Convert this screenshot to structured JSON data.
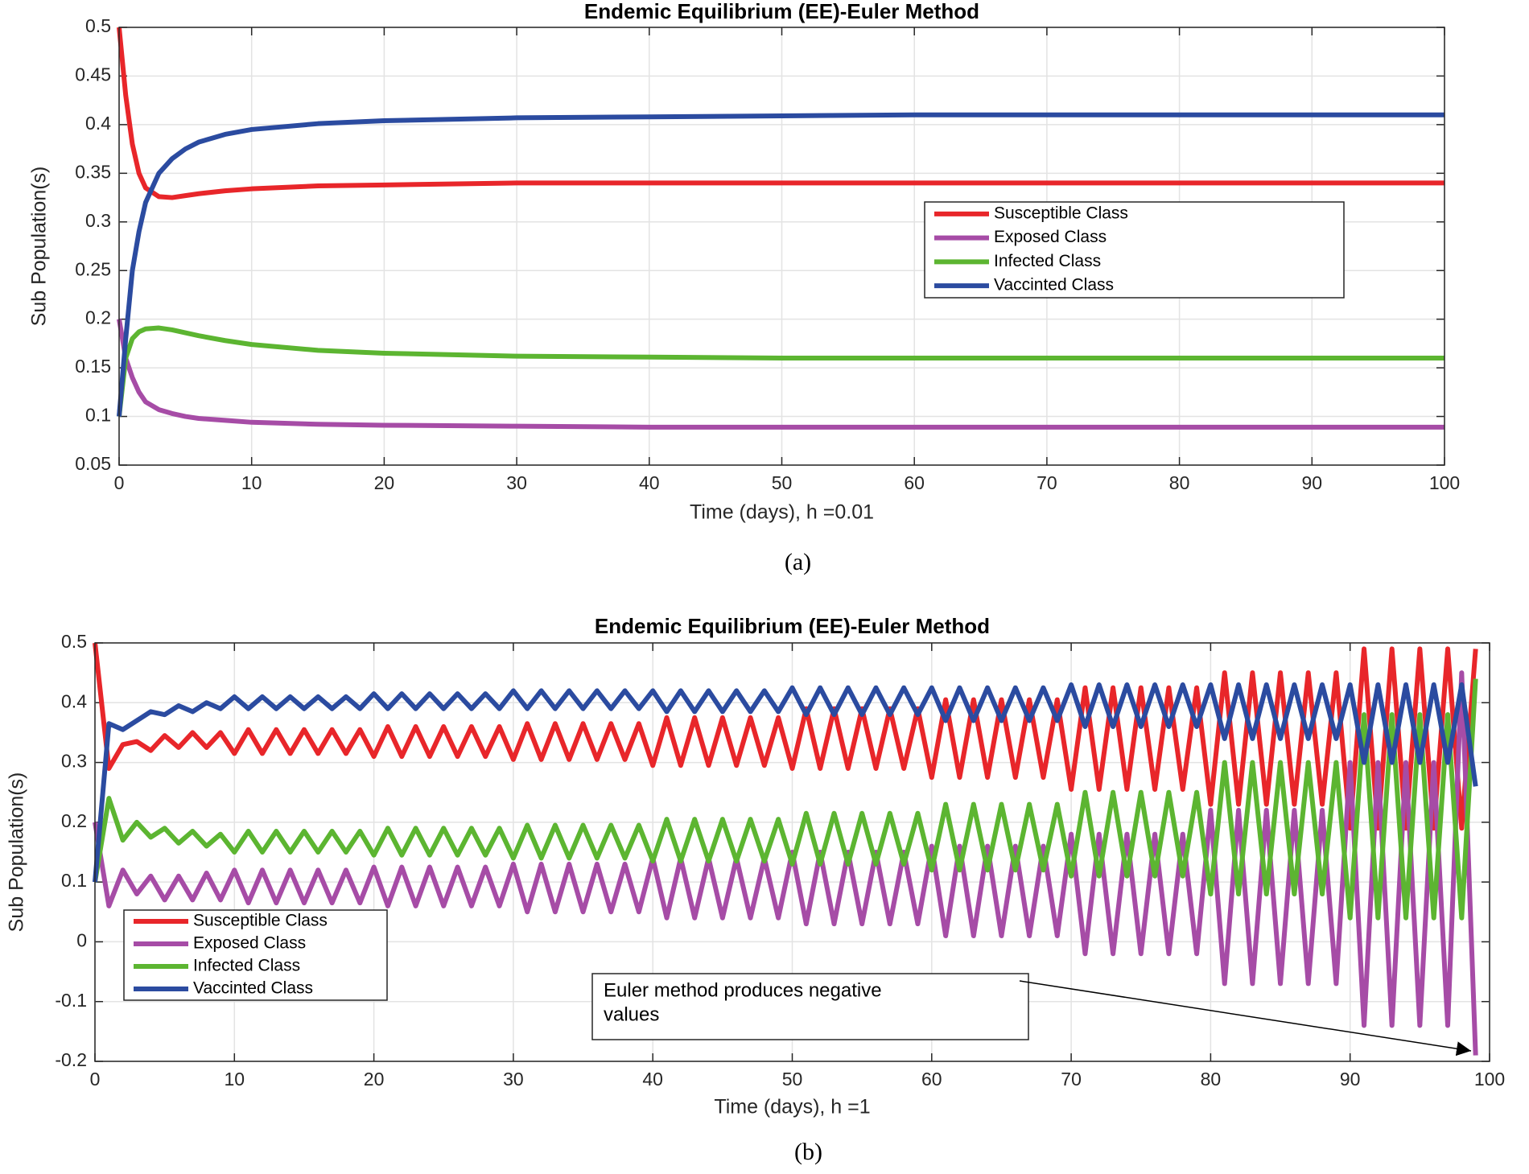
{
  "chart_data": [
    {
      "type": "line",
      "title": "Endemic Equilibrium (EE)-Euler Method",
      "xlabel": "Time (days), h =0.01",
      "ylabel": "Sub Population(s)",
      "label": "(a)",
      "x": [
        0,
        0.5,
        1,
        1.5,
        2,
        3,
        4,
        5,
        6,
        8,
        10,
        15,
        20,
        30,
        40,
        50,
        60,
        70,
        80,
        90,
        100
      ],
      "series": [
        {
          "name": "Susceptible Class",
          "color": "#e8262a",
          "values": [
            0.5,
            0.43,
            0.38,
            0.35,
            0.335,
            0.326,
            0.325,
            0.327,
            0.329,
            0.332,
            0.334,
            0.337,
            0.338,
            0.34,
            0.34,
            0.34,
            0.34,
            0.34,
            0.34,
            0.34,
            0.34
          ]
        },
        {
          "name": "Exposed Class",
          "color": "#a64ca6",
          "values": [
            0.2,
            0.16,
            0.14,
            0.125,
            0.115,
            0.107,
            0.103,
            0.1,
            0.098,
            0.096,
            0.094,
            0.092,
            0.091,
            0.09,
            0.089,
            0.089,
            0.089,
            0.089,
            0.089,
            0.089,
            0.089
          ]
        },
        {
          "name": "Infected Class",
          "color": "#5cb531",
          "values": [
            0.1,
            0.16,
            0.18,
            0.187,
            0.19,
            0.191,
            0.189,
            0.186,
            0.183,
            0.178,
            0.174,
            0.168,
            0.165,
            0.162,
            0.161,
            0.16,
            0.16,
            0.16,
            0.16,
            0.16,
            0.16
          ]
        },
        {
          "name": "Vaccinted Class",
          "color": "#2b4ba0",
          "values": [
            0.1,
            0.18,
            0.25,
            0.29,
            0.32,
            0.35,
            0.365,
            0.375,
            0.382,
            0.39,
            0.395,
            0.401,
            0.404,
            0.407,
            0.408,
            0.409,
            0.41,
            0.41,
            0.41,
            0.41,
            0.41
          ]
        }
      ],
      "xlim": [
        0,
        100
      ],
      "xticks": [
        0,
        10,
        20,
        30,
        40,
        50,
        60,
        70,
        80,
        90,
        100
      ],
      "ylim": [
        0.05,
        0.5
      ],
      "yticks": [
        0.05,
        0.1,
        0.15,
        0.2,
        0.25,
        0.3,
        0.35,
        0.4,
        0.45,
        0.5
      ],
      "grid": true,
      "legend": "right"
    },
    {
      "type": "line",
      "title": "Endemic Equilibrium (EE)-Euler Method",
      "xlabel": "Time (days), h =1",
      "ylabel": "Sub Population(s)",
      "label": "(b)",
      "annotation": [
        "Euler method produces negative",
        "values"
      ],
      "x": [
        0,
        1,
        2,
        3,
        4,
        5,
        6,
        7,
        8,
        9,
        10,
        11,
        12,
        13,
        14,
        15,
        16,
        17,
        18,
        19,
        20,
        21,
        22,
        23,
        24,
        25,
        26,
        27,
        28,
        29,
        30,
        31,
        32,
        33,
        34,
        35,
        36,
        37,
        38,
        39,
        40,
        41,
        42,
        43,
        44,
        45,
        46,
        47,
        48,
        49,
        50,
        51,
        52,
        53,
        54,
        55,
        56,
        57,
        58,
        59,
        60,
        61,
        62,
        63,
        64,
        65,
        66,
        67,
        68,
        69,
        70,
        71,
        72,
        73,
        74,
        75,
        76,
        77,
        78,
        79,
        80,
        81,
        82,
        83,
        84,
        85,
        86,
        87,
        88,
        89,
        90,
        91,
        92,
        93,
        94,
        95,
        96,
        97,
        98,
        99
      ],
      "series": [
        {
          "name": "Susceptible Class",
          "color": "#e8262a",
          "values": [
            0.5,
            0.29,
            0.33,
            0.335,
            0.32,
            0.345,
            0.325,
            0.35,
            0.325,
            0.35,
            0.315,
            0.355,
            0.315,
            0.355,
            0.315,
            0.355,
            0.315,
            0.355,
            0.315,
            0.355,
            0.31,
            0.36,
            0.31,
            0.36,
            0.31,
            0.36,
            0.31,
            0.36,
            0.31,
            0.36,
            0.305,
            0.365,
            0.305,
            0.365,
            0.305,
            0.365,
            0.305,
            0.365,
            0.305,
            0.365,
            0.295,
            0.375,
            0.295,
            0.375,
            0.295,
            0.375,
            0.295,
            0.375,
            0.295,
            0.375,
            0.29,
            0.39,
            0.29,
            0.39,
            0.29,
            0.39,
            0.29,
            0.39,
            0.29,
            0.39,
            0.275,
            0.405,
            0.275,
            0.405,
            0.275,
            0.405,
            0.275,
            0.405,
            0.275,
            0.405,
            0.255,
            0.425,
            0.255,
            0.425,
            0.255,
            0.425,
            0.255,
            0.425,
            0.255,
            0.425,
            0.23,
            0.45,
            0.23,
            0.45,
            0.23,
            0.45,
            0.23,
            0.45,
            0.23,
            0.45,
            0.19,
            0.49,
            0.19,
            0.49,
            0.19,
            0.49,
            0.19,
            0.49,
            0.19,
            0.49
          ]
        },
        {
          "name": "Exposed Class",
          "color": "#a64ca6",
          "values": [
            0.2,
            0.06,
            0.12,
            0.08,
            0.11,
            0.07,
            0.11,
            0.07,
            0.115,
            0.07,
            0.12,
            0.065,
            0.12,
            0.065,
            0.12,
            0.065,
            0.12,
            0.065,
            0.12,
            0.065,
            0.125,
            0.06,
            0.125,
            0.06,
            0.125,
            0.06,
            0.125,
            0.06,
            0.125,
            0.06,
            0.13,
            0.05,
            0.13,
            0.05,
            0.13,
            0.05,
            0.13,
            0.05,
            0.13,
            0.05,
            0.14,
            0.04,
            0.14,
            0.04,
            0.14,
            0.04,
            0.14,
            0.04,
            0.14,
            0.04,
            0.15,
            0.03,
            0.15,
            0.03,
            0.15,
            0.03,
            0.15,
            0.03,
            0.15,
            0.03,
            0.16,
            0.01,
            0.16,
            0.01,
            0.16,
            0.01,
            0.16,
            0.01,
            0.16,
            0.01,
            0.18,
            -0.02,
            0.18,
            -0.02,
            0.18,
            -0.02,
            0.18,
            -0.02,
            0.18,
            -0.02,
            0.22,
            -0.07,
            0.22,
            -0.07,
            0.22,
            -0.07,
            0.22,
            -0.07,
            0.22,
            -0.07,
            0.3,
            -0.14,
            0.3,
            -0.14,
            0.3,
            -0.14,
            0.3,
            -0.14,
            0.45,
            -0.19
          ]
        },
        {
          "name": "Infected Class",
          "color": "#5cb531",
          "values": [
            0.1,
            0.24,
            0.17,
            0.2,
            0.175,
            0.19,
            0.165,
            0.185,
            0.16,
            0.18,
            0.15,
            0.185,
            0.15,
            0.185,
            0.15,
            0.185,
            0.15,
            0.185,
            0.15,
            0.185,
            0.145,
            0.19,
            0.145,
            0.19,
            0.145,
            0.19,
            0.145,
            0.19,
            0.145,
            0.19,
            0.14,
            0.195,
            0.14,
            0.195,
            0.14,
            0.195,
            0.14,
            0.195,
            0.14,
            0.195,
            0.135,
            0.205,
            0.135,
            0.205,
            0.135,
            0.205,
            0.135,
            0.205,
            0.135,
            0.205,
            0.13,
            0.215,
            0.13,
            0.215,
            0.13,
            0.215,
            0.13,
            0.215,
            0.13,
            0.215,
            0.12,
            0.23,
            0.12,
            0.23,
            0.12,
            0.23,
            0.12,
            0.23,
            0.12,
            0.23,
            0.11,
            0.25,
            0.11,
            0.25,
            0.11,
            0.25,
            0.11,
            0.25,
            0.11,
            0.25,
            0.08,
            0.3,
            0.08,
            0.3,
            0.08,
            0.3,
            0.08,
            0.3,
            0.08,
            0.3,
            0.04,
            0.38,
            0.04,
            0.38,
            0.04,
            0.38,
            0.04,
            0.38,
            0.04,
            0.44
          ]
        },
        {
          "name": "Vaccinted Class",
          "color": "#2b4ba0",
          "values": [
            0.1,
            0.365,
            0.355,
            0.37,
            0.385,
            0.38,
            0.395,
            0.385,
            0.4,
            0.39,
            0.41,
            0.39,
            0.41,
            0.39,
            0.41,
            0.39,
            0.41,
            0.39,
            0.41,
            0.39,
            0.415,
            0.39,
            0.415,
            0.39,
            0.415,
            0.39,
            0.415,
            0.39,
            0.415,
            0.39,
            0.42,
            0.39,
            0.42,
            0.39,
            0.42,
            0.39,
            0.42,
            0.39,
            0.42,
            0.39,
            0.42,
            0.385,
            0.42,
            0.385,
            0.42,
            0.385,
            0.42,
            0.385,
            0.42,
            0.385,
            0.425,
            0.38,
            0.425,
            0.38,
            0.425,
            0.38,
            0.425,
            0.38,
            0.425,
            0.38,
            0.425,
            0.37,
            0.425,
            0.37,
            0.425,
            0.37,
            0.425,
            0.37,
            0.425,
            0.37,
            0.43,
            0.36,
            0.43,
            0.36,
            0.43,
            0.36,
            0.43,
            0.36,
            0.43,
            0.36,
            0.43,
            0.34,
            0.43,
            0.34,
            0.43,
            0.34,
            0.43,
            0.34,
            0.43,
            0.34,
            0.43,
            0.3,
            0.43,
            0.3,
            0.43,
            0.3,
            0.43,
            0.3,
            0.43,
            0.26
          ]
        }
      ],
      "xlim": [
        0,
        100
      ],
      "xticks": [
        0,
        10,
        20,
        30,
        40,
        50,
        60,
        70,
        80,
        90,
        100
      ],
      "ylim": [
        -0.2,
        0.5
      ],
      "yticks": [
        -0.2,
        -0.1,
        0,
        0.1,
        0.2,
        0.3,
        0.4,
        0.5
      ],
      "grid": true,
      "legend": "lower left"
    }
  ]
}
